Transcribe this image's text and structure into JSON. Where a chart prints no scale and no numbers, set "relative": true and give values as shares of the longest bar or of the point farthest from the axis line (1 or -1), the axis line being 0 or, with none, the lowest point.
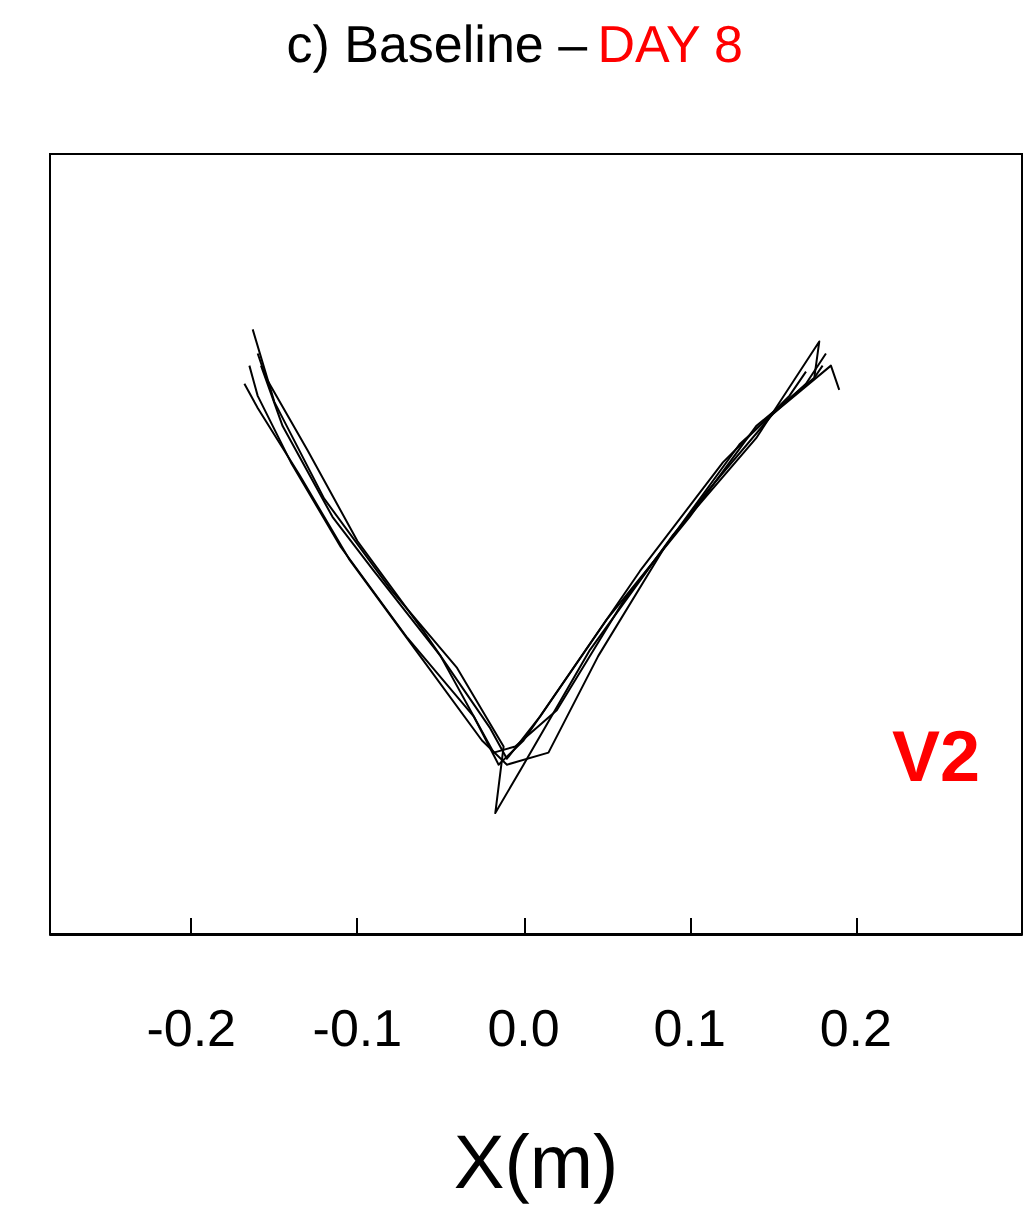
{
  "chart_data": {
    "type": "line",
    "title": "c) Baseline –",
    "subtitle": "DAY 8",
    "xlabel": "X(m)",
    "relative": true,
    "xlim": [
      -0.285,
      0.3
    ],
    "xticks": [
      {
        "value": -0.2,
        "label": "-0.2"
      },
      {
        "value": -0.1,
        "label": "-0.1"
      },
      {
        "value": 0,
        "label": "0.0"
      },
      {
        "value": 0.1,
        "label": "0.1"
      },
      {
        "value": 0.2,
        "label": "0.2"
      }
    ],
    "grid": false,
    "marker": "none",
    "annotations": [
      "V2"
    ],
    "series": [
      {
        "color": "#000000",
        "x": [
          -0.16,
          -0.155,
          -0.13,
          -0.1,
          -0.06,
          -0.02,
          -0.01,
          0.01,
          0.05,
          0.1,
          0.14,
          0.175,
          0.18
        ],
        "values": [
          0.96,
          0.92,
          0.8,
          0.65,
          0.5,
          0.34,
          0.29,
          0.36,
          0.52,
          0.69,
          0.84,
          0.92,
          0.94
        ]
      },
      {
        "color": "#000000",
        "x": [
          -0.165,
          -0.16,
          -0.14,
          -0.11,
          -0.07,
          -0.03,
          -0.015,
          0.0,
          0.03,
          0.07,
          0.12,
          0.16,
          0.17
        ],
        "values": [
          0.94,
          0.89,
          0.78,
          0.64,
          0.49,
          0.36,
          0.28,
          0.32,
          0.44,
          0.6,
          0.78,
          0.89,
          0.93
        ]
      },
      {
        "color": "#000000",
        "x": [
          -0.163,
          -0.15,
          -0.12,
          -0.08,
          -0.04,
          -0.012,
          -0.017,
          0.0,
          0.04,
          0.09,
          0.14,
          0.178,
          0.175
        ],
        "values": [
          1.0,
          0.88,
          0.72,
          0.57,
          0.44,
          0.31,
          0.2,
          0.28,
          0.47,
          0.66,
          0.82,
          0.98,
          0.92
        ]
      },
      {
        "color": "#000000",
        "x": [
          -0.158,
          -0.145,
          -0.115,
          -0.09,
          -0.05,
          -0.018,
          -0.005,
          0.02,
          0.06,
          0.11,
          0.15,
          0.185,
          0.19
        ],
        "values": [
          0.94,
          0.84,
          0.69,
          0.6,
          0.46,
          0.3,
          0.31,
          0.37,
          0.55,
          0.73,
          0.86,
          0.94,
          0.9
        ]
      },
      {
        "color": "#000000",
        "x": [
          -0.168,
          -0.16,
          -0.135,
          -0.105,
          -0.065,
          -0.025,
          -0.01,
          0.015,
          0.045,
          0.085,
          0.13,
          0.17,
          0.182
        ],
        "values": [
          0.91,
          0.87,
          0.76,
          0.62,
          0.47,
          0.32,
          0.28,
          0.3,
          0.46,
          0.64,
          0.81,
          0.91,
          0.96
        ]
      }
    ]
  }
}
